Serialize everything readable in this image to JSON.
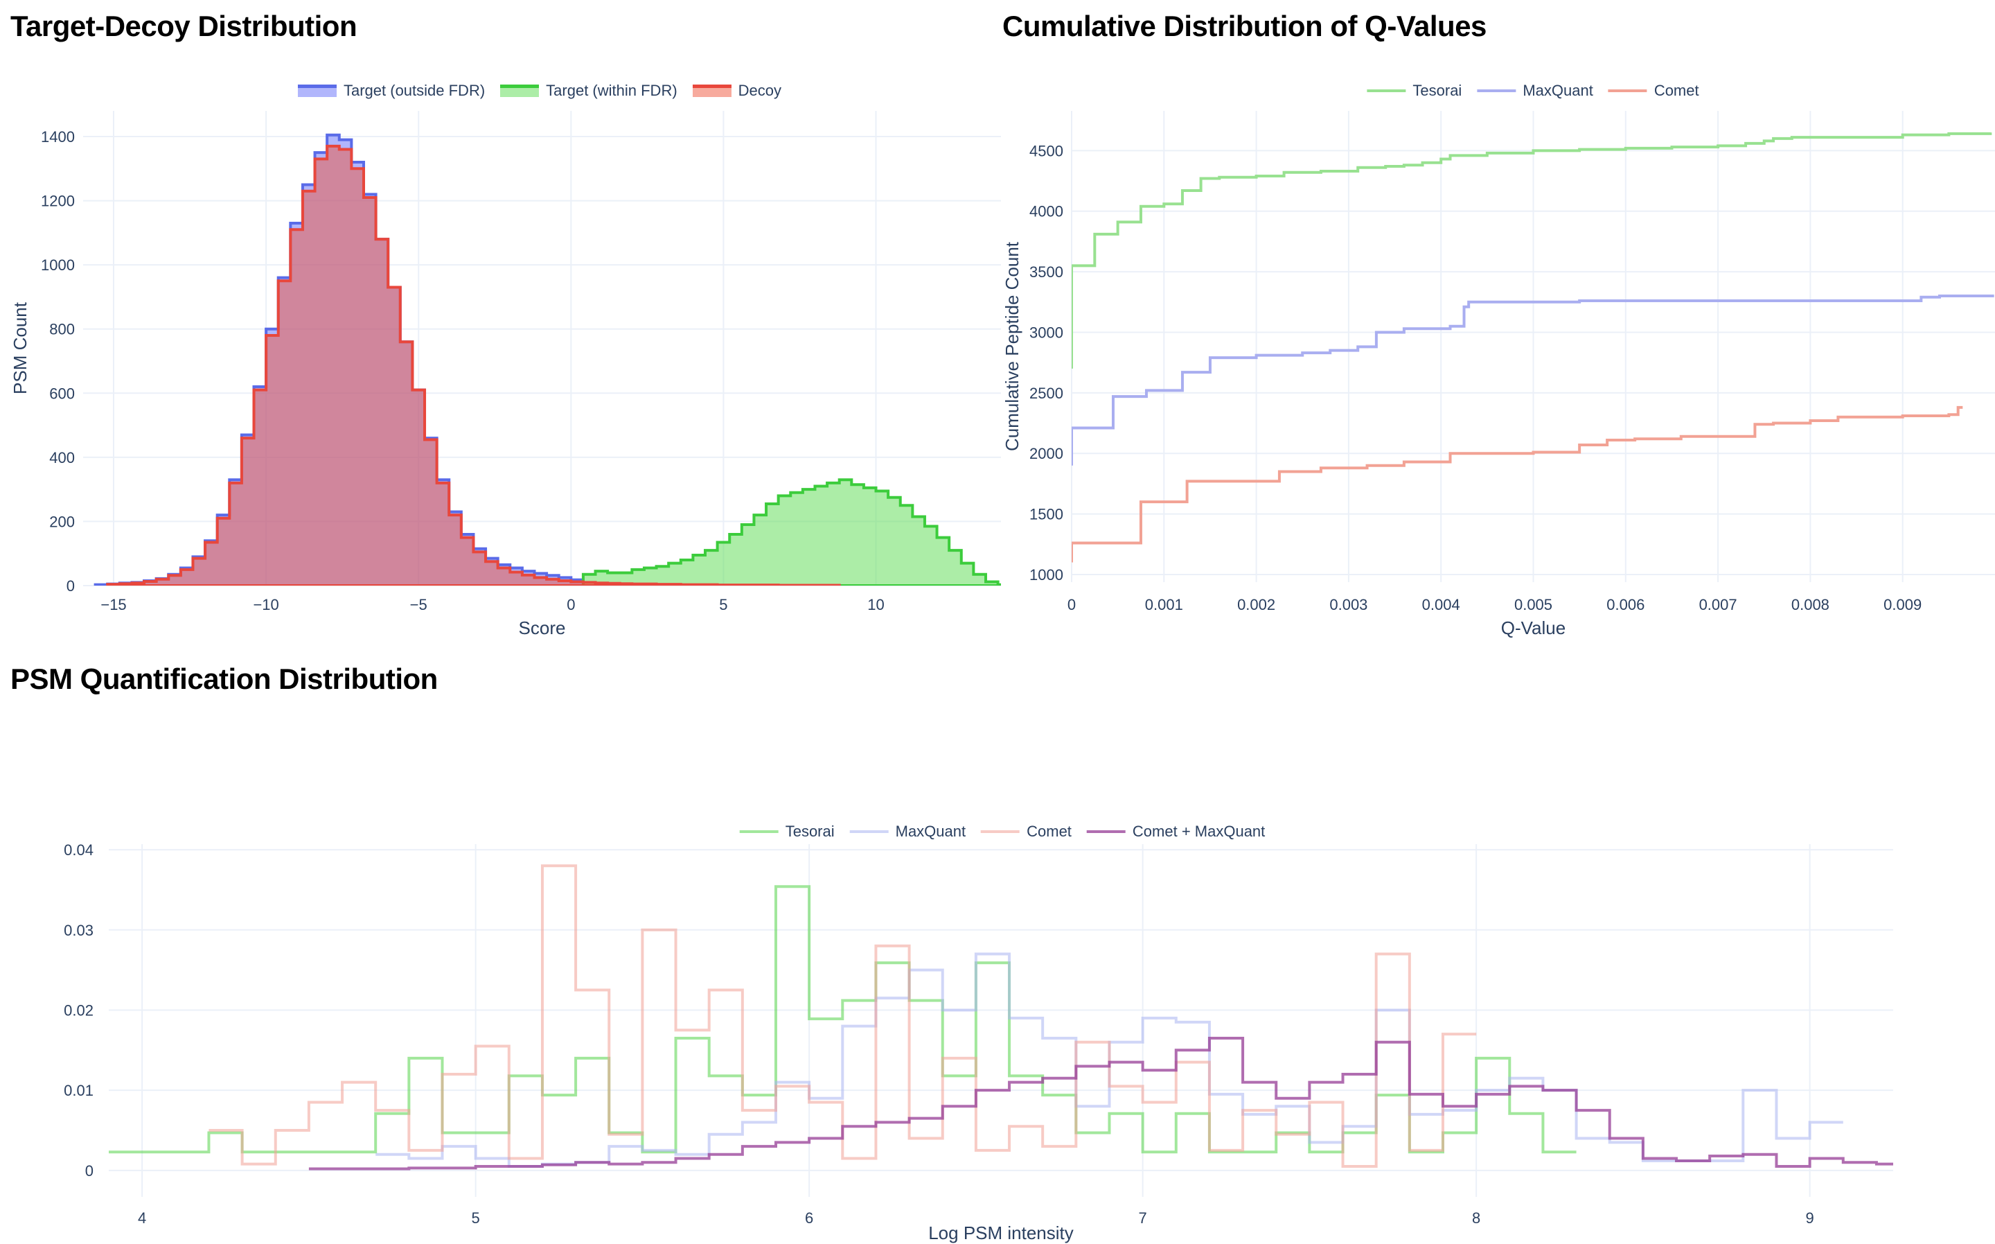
{
  "chart_data": [
    {
      "type": "bar",
      "subtype": "step-histogram",
      "title": "Target-Decoy Distribution",
      "xlabel": "Score",
      "ylabel": "PSM Count",
      "xlim": [
        -16,
        14.1
      ],
      "ylim": [
        0,
        1480
      ],
      "grid": true,
      "legend_position": "top-center",
      "xticks": [
        -15,
        -10,
        -5,
        0,
        5,
        10
      ],
      "xticklabels": [
        "−15",
        "−10",
        "−5",
        "0",
        "5",
        "10"
      ],
      "yticks": [
        0,
        200,
        400,
        600,
        800,
        1000,
        1200,
        1400
      ],
      "yticklabels": [
        "0",
        "200",
        "400",
        "600",
        "800",
        "1000",
        "1200",
        "1400"
      ],
      "series": [
        {
          "name": "Target (outside FDR)",
          "color": "#5a6be8",
          "fill": "rgba(99,110,250,0.5)",
          "kind": "hist",
          "x_start": -15.6,
          "bin_width": 0.4,
          "values": [
            3,
            5,
            8,
            10,
            15,
            22,
            35,
            55,
            90,
            140,
            220,
            330,
            470,
            620,
            800,
            960,
            1130,
            1250,
            1350,
            1405,
            1390,
            1320,
            1220,
            1080,
            930,
            760,
            610,
            460,
            330,
            230,
            160,
            115,
            85,
            65,
            55,
            45,
            38,
            32,
            25,
            18
          ]
        },
        {
          "name": "Target (within FDR)",
          "color": "#3ccc3c",
          "fill": "rgba(90,220,80,0.5)",
          "kind": "hist",
          "x_start": 0.4,
          "bin_width": 0.4,
          "values": [
            35,
            45,
            40,
            40,
            50,
            55,
            60,
            70,
            80,
            95,
            110,
            135,
            160,
            190,
            220,
            255,
            280,
            290,
            300,
            310,
            320,
            330,
            315,
            305,
            295,
            275,
            250,
            215,
            185,
            150,
            110,
            70,
            35,
            12,
            3
          ]
        },
        {
          "name": "Decoy",
          "color": "#e8473c",
          "fill": "rgba(239,85,59,0.5)",
          "kind": "hist",
          "x_start": -15.2,
          "bin_width": 0.4,
          "values": [
            4,
            6,
            8,
            13,
            20,
            32,
            50,
            85,
            135,
            210,
            320,
            460,
            610,
            780,
            950,
            1110,
            1230,
            1330,
            1370,
            1360,
            1300,
            1210,
            1080,
            930,
            760,
            610,
            455,
            320,
            220,
            150,
            105,
            75,
            55,
            42,
            33,
            25,
            20,
            15,
            12,
            10,
            8,
            7,
            6,
            5,
            5,
            4,
            4,
            3,
            3,
            3,
            2,
            2,
            2,
            2,
            2,
            1,
            1,
            1,
            1,
            1
          ]
        }
      ]
    },
    {
      "type": "line",
      "subtype": "step",
      "title": "Cumulative Distribution of Q-Values",
      "xlabel": "Q-Value",
      "ylabel": "Cumulative Peptide Count",
      "xlim": [
        0,
        0.01
      ],
      "ylim": [
        937,
        4828
      ],
      "grid": true,
      "legend_position": "top-center",
      "xticks": [
        0,
        0.001,
        0.002,
        0.003,
        0.004,
        0.005,
        0.006,
        0.007,
        0.008,
        0.009
      ],
      "xticklabels": [
        "0",
        "0.001",
        "0.002",
        "0.003",
        "0.004",
        "0.005",
        "0.006",
        "0.007",
        "0.008",
        "0.009"
      ],
      "yticks": [
        1000,
        1500,
        2000,
        2500,
        3000,
        3500,
        4000,
        4500
      ],
      "yticklabels": [
        "1000",
        "1500",
        "2000",
        "2500",
        "3000",
        "3500",
        "4000",
        "4500"
      ],
      "series": [
        {
          "name": "Tesorai",
          "color": "#98e190",
          "kind": "step",
          "x": [
            0,
            0,
            0.00025,
            0.0005,
            0.00075,
            0.001,
            0.0012,
            0.0014,
            0.0016,
            0.002,
            0.0023,
            0.0027,
            0.0031,
            0.0034,
            0.0036,
            0.0038,
            0.004,
            0.0041,
            0.0045,
            0.005,
            0.0055,
            0.006,
            0.0065,
            0.007,
            0.0073,
            0.0075,
            0.0076,
            0.0078,
            0.009,
            0.0095,
            0.00995
          ],
          "y": [
            2700,
            3550,
            3810,
            3910,
            4040,
            4060,
            4170,
            4270,
            4280,
            4290,
            4320,
            4330,
            4360,
            4370,
            4380,
            4400,
            4430,
            4460,
            4480,
            4500,
            4510,
            4520,
            4530,
            4540,
            4560,
            4580,
            4600,
            4610,
            4630,
            4640,
            4650
          ]
        },
        {
          "name": "MaxQuant",
          "color": "#a9aef0",
          "kind": "step",
          "x": [
            0,
            0,
            0.00045,
            0.00081,
            0.0012,
            0.0015,
            0.002,
            0.0025,
            0.0028,
            0.0031,
            0.0033,
            0.0036,
            0.0041,
            0.00425,
            0.0043,
            0.0055,
            0.0092,
            0.0094,
            0.00999
          ],
          "y": [
            1900,
            2210,
            2470,
            2520,
            2670,
            2790,
            2810,
            2830,
            2850,
            2880,
            3000,
            3030,
            3050,
            3210,
            3250,
            3260,
            3290,
            3300,
            3300
          ]
        },
        {
          "name": "Comet",
          "color": "#f2a294",
          "kind": "step",
          "x": [
            0,
            0,
            0.00075,
            0.00125,
            0.00225,
            0.0027,
            0.0032,
            0.0036,
            0.0041,
            0.005,
            0.0055,
            0.0058,
            0.0061,
            0.0066,
            0.0074,
            0.0076,
            0.008,
            0.0083,
            0.009,
            0.0095,
            0.0096,
            0.00965
          ],
          "y": [
            1100,
            1260,
            1600,
            1770,
            1850,
            1880,
            1900,
            1930,
            2000,
            2010,
            2070,
            2110,
            2120,
            2140,
            2240,
            2250,
            2270,
            2300,
            2310,
            2320,
            2380,
            2380
          ]
        }
      ]
    },
    {
      "type": "line",
      "subtype": "step-histogram",
      "title": "PSM Quantification Distribution",
      "xlabel": "Log PSM intensity",
      "ylabel": "",
      "xlim": [
        3.9,
        9.25
      ],
      "ylim": [
        -0.0033,
        0.0407
      ],
      "grid": true,
      "legend_position": "top-center",
      "xticks": [
        4,
        5,
        6,
        7,
        8,
        9
      ],
      "xticklabels": [
        "4",
        "5",
        "6",
        "7",
        "8",
        "9"
      ],
      "yticks": [
        0,
        0.01,
        0.02,
        0.03,
        0.04
      ],
      "yticklabels": [
        "0",
        "0.01",
        "0.02",
        "0.03",
        "0.04"
      ],
      "series": [
        {
          "name": "Tesorai",
          "color": "rgba(100,215,90,0.6)",
          "kind": "histline",
          "x_start": 3.9,
          "bin_width": 0.1,
          "values": [
            0.0023,
            0.0023,
            0.0023,
            0.0047,
            0.0023,
            0.0023,
            0.0023,
            0.0023,
            0.0071,
            0.014,
            0.0047,
            0.0047,
            0.0118,
            0.0094,
            0.014,
            0.0047,
            0.0023,
            0.0165,
            0.0118,
            0.0094,
            0.0354,
            0.0189,
            0.0212,
            0.0259,
            0.0212,
            0.0118,
            0.0259,
            0.0118,
            0.0094,
            0.0047,
            0.0071,
            0.0023,
            0.0071,
            0.0023,
            0.0023,
            0.0047,
            0.0023,
            0.0047,
            0.0094,
            0.0023,
            0.0047,
            0.014,
            0.0071,
            0.0023
          ]
        },
        {
          "name": "MaxQuant",
          "color": "rgba(170,180,240,0.55)",
          "kind": "histline",
          "x_start": 4.7,
          "bin_width": 0.1,
          "values": [
            0.002,
            0.0015,
            0.003,
            0.0015,
            0.0005,
            0.0008,
            0.001,
            0.003,
            0.0025,
            0.002,
            0.0045,
            0.006,
            0.011,
            0.009,
            0.018,
            0.0215,
            0.025,
            0.02,
            0.027,
            0.019,
            0.0165,
            0.008,
            0.016,
            0.019,
            0.0185,
            0.0095,
            0.007,
            0.008,
            0.0035,
            0.0055,
            0.02,
            0.007,
            0.0075,
            0.01,
            0.0115,
            0.01,
            0.004,
            0.0035,
            0.0012,
            0.0012,
            0.0012,
            0.01,
            0.004,
            0.006
          ]
        },
        {
          "name": "Comet",
          "color": "rgba(240,160,150,0.55)",
          "kind": "histline",
          "x_start": 4.2,
          "bin_width": 0.1,
          "values": [
            0.005,
            0.0008,
            0.005,
            0.0085,
            0.011,
            0.0075,
            0.0025,
            0.012,
            0.0155,
            0.0015,
            0.038,
            0.0225,
            0.0045,
            0.03,
            0.0175,
            0.0225,
            0.0075,
            0.0105,
            0.0085,
            0.0015,
            0.028,
            0.004,
            0.014,
            0.0025,
            0.0055,
            0.003,
            0.016,
            0.0105,
            0.0085,
            0.0135,
            0.0025,
            0.0075,
            0.0045,
            0.0085,
            0.0005,
            0.027,
            0.0025,
            0.017
          ]
        },
        {
          "name": "Comet + MaxQuant",
          "color": "rgba(150,60,150,0.75)",
          "kind": "histline",
          "x_start": 4.5,
          "bin_width": 0.1,
          "values": [
            0.0002,
            0.0002,
            0.0002,
            0.0003,
            0.0003,
            0.0005,
            0.0005,
            0.0007,
            0.001,
            0.0008,
            0.001,
            0.0015,
            0.002,
            0.003,
            0.0035,
            0.004,
            0.0055,
            0.006,
            0.0065,
            0.008,
            0.01,
            0.011,
            0.0115,
            0.013,
            0.0135,
            0.0125,
            0.015,
            0.0165,
            0.011,
            0.009,
            0.011,
            0.012,
            0.016,
            0.0095,
            0.008,
            0.0095,
            0.0105,
            0.01,
            0.0075,
            0.004,
            0.0015,
            0.0012,
            0.0018,
            0.002,
            0.0005,
            0.0015,
            0.001,
            0.0008
          ]
        }
      ]
    }
  ]
}
